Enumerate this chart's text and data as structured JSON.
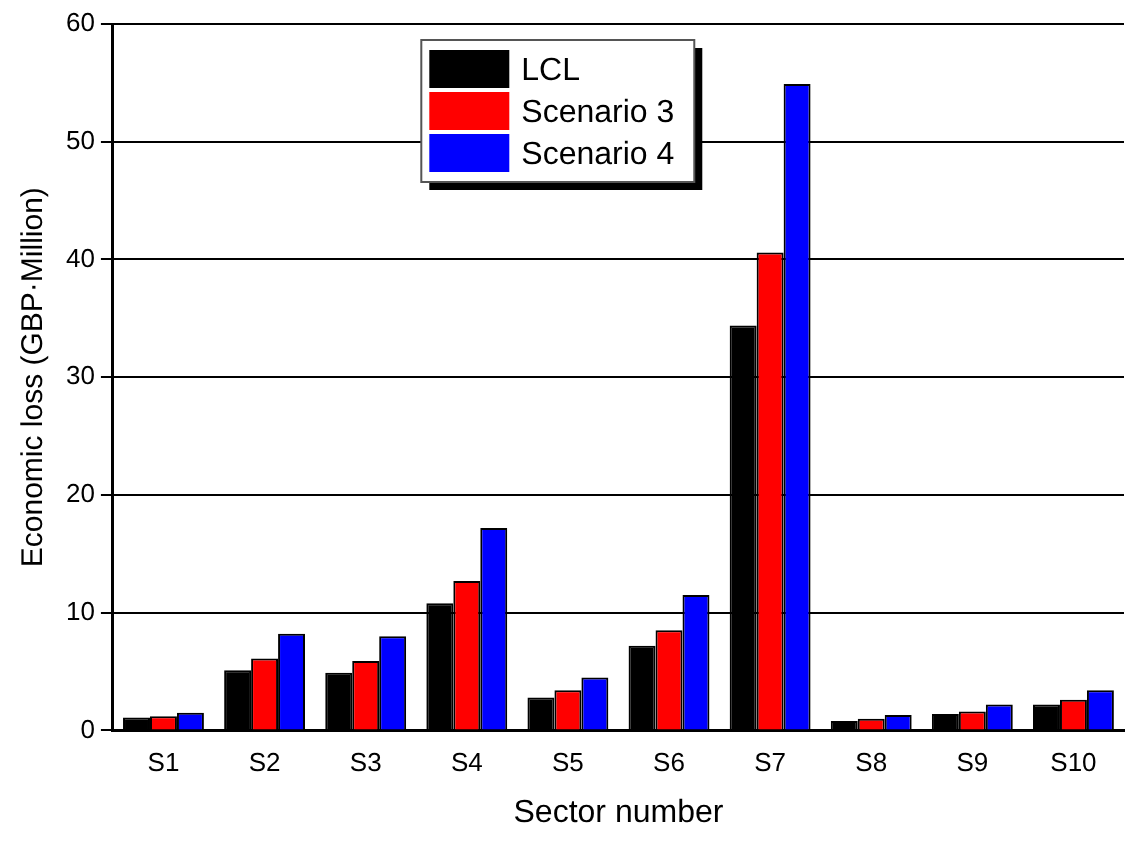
{
  "chart_data": {
    "type": "bar",
    "xlabel": "Sector number",
    "ylabel": "Economic loss (GBP·Million)",
    "categories": [
      "S1",
      "S2",
      "S3",
      "S4",
      "S5",
      "S6",
      "S7",
      "S8",
      "S9",
      "S10"
    ],
    "series": [
      {
        "name": "LCL",
        "color": "#000000",
        "values": [
          1.1,
          5.1,
          4.9,
          10.8,
          2.8,
          7.2,
          34.4,
          0.8,
          1.4,
          2.2
        ]
      },
      {
        "name": "Scenario 3",
        "color": "#ff0000",
        "values": [
          1.2,
          6.1,
          5.9,
          12.7,
          3.4,
          8.5,
          40.6,
          1.0,
          1.6,
          2.6
        ]
      },
      {
        "name": "Scenario 4",
        "color": "#0000ff",
        "values": [
          1.5,
          8.2,
          8.0,
          17.2,
          4.5,
          11.5,
          54.9,
          1.3,
          2.2,
          3.4
        ]
      }
    ],
    "ylim": [
      0,
      60
    ],
    "yticks": [
      0,
      10,
      20,
      30,
      40,
      50,
      60
    ],
    "grid": "y",
    "legend": "top"
  }
}
